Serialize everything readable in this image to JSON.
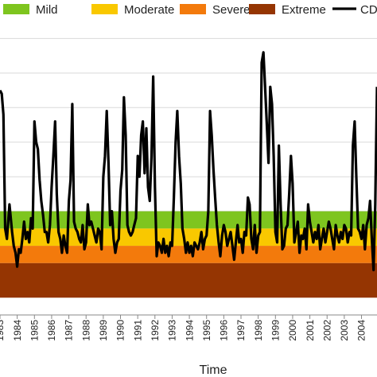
{
  "chart_data": {
    "type": "line",
    "title": "",
    "xlabel": "Time",
    "ylabel": "",
    "grid": true,
    "legend_placement": "top",
    "x_tick_labels": [
      "1983",
      "1984",
      "1985",
      "1986",
      "1987",
      "1988",
      "1989",
      "1990",
      "1991",
      "1992",
      "1993",
      "1994",
      "1995",
      "1996",
      "1997",
      "1998",
      "1999",
      "2000",
      "2001",
      "2002",
      "2003",
      "2004"
    ],
    "xlim": [
      1983,
      2004.9
    ],
    "ylim": [
      -3.0,
      5.4
    ],
    "bands": [
      {
        "name": "Mild",
        "from": -0.5,
        "to": 0.0,
        "color": "#7ec51f"
      },
      {
        "name": "Moderate",
        "from": -1.0,
        "to": -0.5,
        "color": "#f9c800"
      },
      {
        "name": "Severe",
        "from": -1.5,
        "to": -1.0,
        "color": "#f37a0c"
      },
      {
        "name": "Extreme",
        "from": -2.5,
        "to": -1.5,
        "color": "#953502"
      }
    ],
    "series": [
      {
        "name": "CDI",
        "color": "#000000",
        "x": [
          1983.0,
          1983.1,
          1983.2,
          1983.3,
          1983.4,
          1983.55,
          1983.7,
          1983.8,
          1983.9,
          1984.0,
          1984.1,
          1984.2,
          1984.3,
          1984.4,
          1984.5,
          1984.6,
          1984.7,
          1984.8,
          1984.9,
          1985.0,
          1985.1,
          1985.2,
          1985.3,
          1985.4,
          1985.5,
          1985.6,
          1985.7,
          1985.8,
          1985.9,
          1986.0,
          1986.1,
          1986.2,
          1986.3,
          1986.4,
          1986.5,
          1986.6,
          1986.7,
          1986.8,
          1986.9,
          1987.0,
          1987.1,
          1987.2,
          1987.3,
          1987.4,
          1987.5,
          1987.6,
          1987.7,
          1987.8,
          1987.9,
          1988.0,
          1988.1,
          1988.2,
          1988.3,
          1988.4,
          1988.5,
          1988.6,
          1988.7,
          1988.8,
          1988.9,
          1989.0,
          1989.1,
          1989.2,
          1989.3,
          1989.4,
          1989.5,
          1989.6,
          1989.7,
          1989.8,
          1989.9,
          1990.0,
          1990.1,
          1990.2,
          1990.3,
          1990.4,
          1990.5,
          1990.6,
          1990.7,
          1990.8,
          1990.9,
          1991.0,
          1991.1,
          1991.2,
          1991.3,
          1991.4,
          1991.5,
          1991.6,
          1991.7,
          1991.8,
          1991.9,
          1992.0,
          1992.1,
          1992.2,
          1992.3,
          1992.4,
          1992.5,
          1992.6,
          1992.7,
          1992.8,
          1992.9,
          1993.0,
          1993.1,
          1993.2,
          1993.3,
          1993.4,
          1993.5,
          1993.6,
          1993.7,
          1993.8,
          1993.9,
          1994.0,
          1994.1,
          1994.2,
          1994.3,
          1994.4,
          1994.5,
          1994.6,
          1994.7,
          1994.8,
          1994.9,
          1995.0,
          1995.1,
          1995.2,
          1995.3,
          1995.4,
          1995.5,
          1995.6,
          1995.7,
          1995.8,
          1995.9,
          1996.0,
          1996.1,
          1996.2,
          1996.3,
          1996.4,
          1996.5,
          1996.6,
          1996.7,
          1996.8,
          1996.9,
          1997.0,
          1997.1,
          1997.2,
          1997.3,
          1997.4,
          1997.5,
          1997.6,
          1997.7,
          1997.8,
          1997.9,
          1998.0,
          1998.1,
          1998.2,
          1998.3,
          1998.4,
          1998.5,
          1998.6,
          1998.7,
          1998.8,
          1998.9,
          1999.0,
          1999.1,
          1999.2,
          1999.3,
          1999.4,
          1999.5,
          1999.6,
          1999.7,
          1999.8,
          1999.9,
          2000.0,
          2000.1,
          2000.2,
          2000.3,
          2000.4,
          2000.5,
          2000.6,
          2000.7,
          2000.8,
          2000.9,
          2001.0,
          2001.1,
          2001.2,
          2001.3,
          2001.4,
          2001.5,
          2001.6,
          2001.7,
          2001.8,
          2001.9,
          2002.0,
          2002.1,
          2002.2,
          2002.3,
          2002.4,
          2002.5,
          2002.6,
          2002.7,
          2002.8,
          2002.9,
          2003.0,
          2003.1,
          2003.2,
          2003.3,
          2003.4,
          2003.5,
          2003.6,
          2003.7,
          2003.8,
          2003.9,
          2004.0,
          2004.1,
          2004.2,
          2004.3,
          2004.4,
          2004.5,
          2004.6,
          2004.7,
          2004.8,
          2004.9
        ],
        "y": [
          3.5,
          3.4,
          2.8,
          -0.5,
          -0.8,
          0.2,
          -0.6,
          -1.0,
          -1.2,
          -1.6,
          -1.1,
          -1.2,
          -0.8,
          -0.3,
          -0.8,
          -0.6,
          -0.9,
          -0.2,
          -0.5,
          2.6,
          2.0,
          1.8,
          0.9,
          0.3,
          -0.1,
          -0.6,
          -0.6,
          -0.9,
          -0.4,
          0.7,
          1.6,
          2.6,
          0.5,
          -0.6,
          -0.8,
          -1.2,
          -0.7,
          -1.0,
          -1.2,
          0.3,
          0.9,
          3.1,
          -0.3,
          -0.5,
          -0.6,
          -0.8,
          -0.9,
          -0.4,
          -1.1,
          -0.9,
          0.2,
          -0.4,
          -0.3,
          -0.5,
          -0.7,
          -0.9,
          -0.5,
          -0.6,
          -1.1,
          1.0,
          1.6,
          2.9,
          1.4,
          -0.4,
          0.0,
          -0.8,
          -1.2,
          -0.9,
          -0.8,
          0.6,
          1.2,
          3.3,
          2.2,
          -0.4,
          -0.6,
          -0.7,
          -0.6,
          -0.4,
          -0.2,
          1.6,
          1.0,
          2.2,
          2.6,
          1.1,
          2.4,
          0.7,
          0.3,
          1.6,
          3.9,
          0.7,
          -1.3,
          -0.9,
          -1.0,
          -1.2,
          -0.8,
          -1.2,
          -1.0,
          -1.3,
          -0.9,
          -1.0,
          0.4,
          2.0,
          2.9,
          1.6,
          0.8,
          -0.5,
          -0.8,
          -1.2,
          -0.9,
          -1.2,
          -1.0,
          -1.3,
          -0.9,
          -1.0,
          -1.1,
          -0.9,
          -0.6,
          -1.1,
          -0.8,
          -0.7,
          0.0,
          2.9,
          2.2,
          1.2,
          0.4,
          -0.4,
          -0.9,
          -1.3,
          -0.7,
          -0.4,
          -0.6,
          -1.0,
          -0.8,
          -0.6,
          -1.0,
          -1.4,
          -0.9,
          -0.4,
          -0.9,
          -0.8,
          -1.2,
          -0.6,
          -0.7,
          0.4,
          0.2,
          -0.8,
          -1.1,
          -0.4,
          -1.2,
          -0.7,
          -0.6,
          4.3,
          4.6,
          3.6,
          2.5,
          1.4,
          3.6,
          3.1,
          1.6,
          -0.6,
          -0.9,
          1.9,
          0.2,
          -1.1,
          -1.0,
          -0.5,
          -0.4,
          0.5,
          1.6,
          0.8,
          -0.9,
          -0.6,
          -0.3,
          -1.2,
          -0.7,
          -0.8,
          -0.5,
          -1.1,
          0.2,
          -0.3,
          -0.6,
          -0.9,
          -0.6,
          -0.8,
          -0.4,
          -1.1,
          -0.8,
          -0.5,
          -0.9,
          -0.6,
          -0.3,
          -0.5,
          -0.8,
          -1.1,
          -0.4,
          -0.7,
          -0.9,
          -0.6,
          -0.8,
          -0.4,
          -0.5,
          -0.9,
          -0.6,
          -0.7,
          1.9,
          2.6,
          1.0,
          -0.5,
          -0.6,
          -0.8,
          -0.4,
          -1.1,
          -0.4,
          -0.2,
          0.3,
          -0.8,
          -1.7,
          0.2,
          3.6
        ]
      }
    ]
  }
}
